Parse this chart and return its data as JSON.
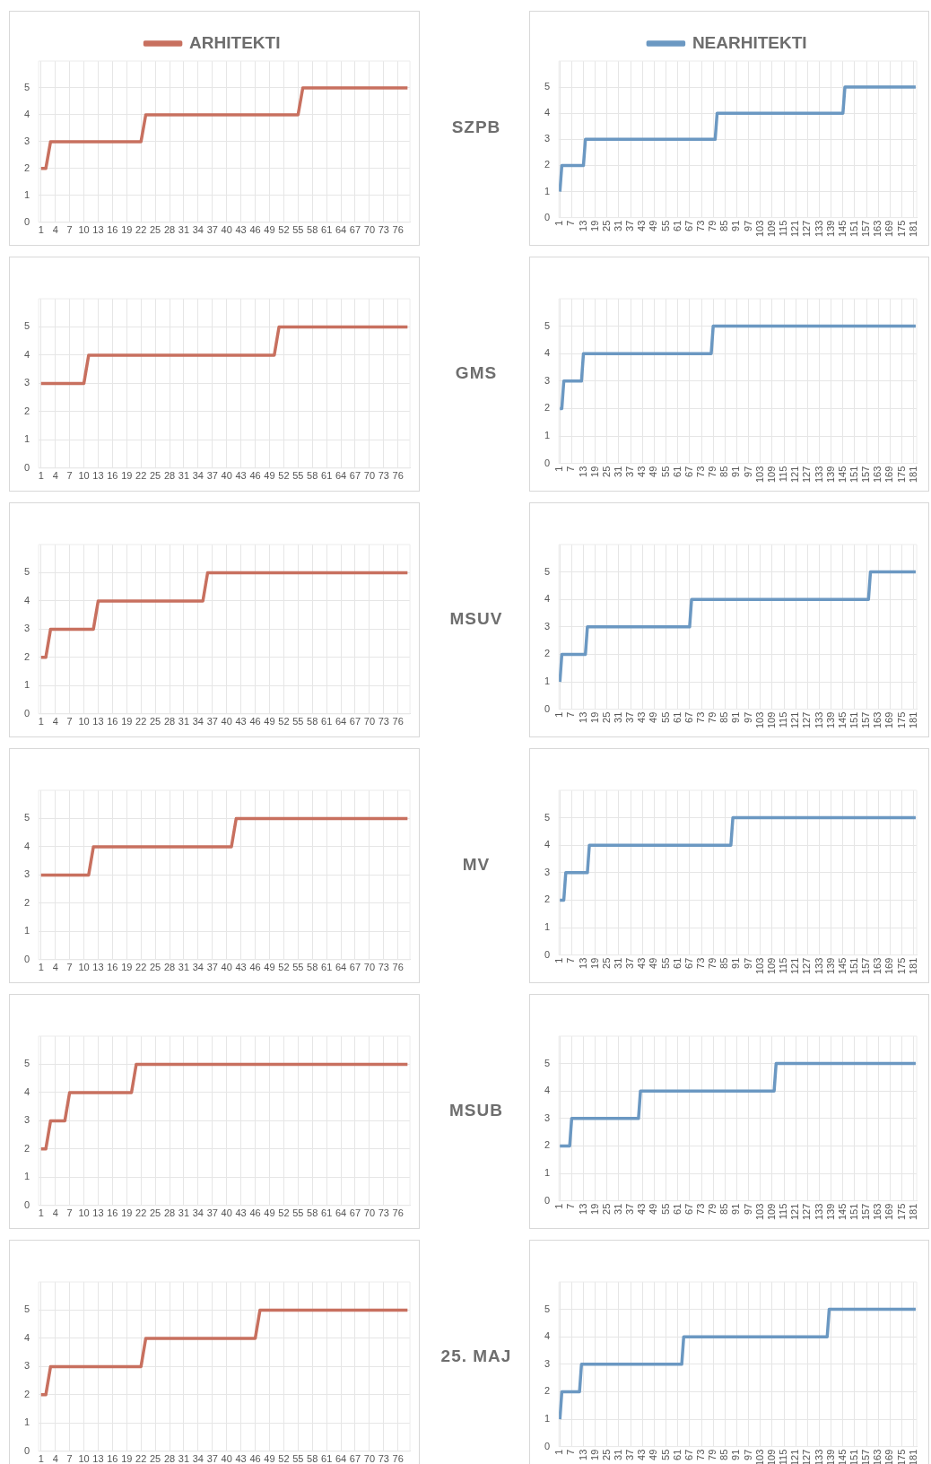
{
  "chart_data": [
    {
      "type": "line",
      "annotations": [
        "SZPB"
      ],
      "legend": "top",
      "grid": true,
      "xlim": [
        0.5,
        78.5
      ],
      "xticks": [
        1,
        4,
        7,
        10,
        13,
        16,
        19,
        22,
        25,
        28,
        31,
        34,
        37,
        40,
        43,
        46,
        49,
        52,
        55,
        58,
        61,
        64,
        67,
        70,
        73,
        76
      ],
      "ylim": [
        0,
        6
      ],
      "yticks": [
        0,
        1,
        2,
        3,
        4,
        5
      ],
      "series": [
        {
          "name": "ARHITEKTI",
          "color": "#c8705f",
          "x": [
            1,
            2,
            3,
            22,
            23,
            55,
            56,
            78
          ],
          "values": [
            2,
            2,
            3,
            3,
            4,
            4,
            5,
            5
          ]
        }
      ]
    },
    {
      "type": "line",
      "legend": "top",
      "grid": true,
      "xlim": [
        0.5,
        182.5
      ],
      "xticks": [
        1,
        7,
        13,
        19,
        25,
        31,
        37,
        43,
        49,
        55,
        61,
        67,
        73,
        79,
        85,
        91,
        97,
        103,
        109,
        115,
        121,
        127,
        133,
        139,
        145,
        151,
        157,
        163,
        169,
        175,
        181
      ],
      "ylim": [
        0,
        6
      ],
      "yticks": [
        0,
        1,
        2,
        3,
        4,
        5
      ],
      "series": [
        {
          "name": "NEARHITEKTI",
          "color": "#6b98c2",
          "x": [
            1,
            2,
            13,
            14,
            80,
            81,
            145,
            146,
            182
          ],
          "values": [
            1,
            2,
            2,
            3,
            3,
            4,
            4,
            5,
            5
          ]
        }
      ]
    },
    {
      "type": "line",
      "annotations": [
        "GMS"
      ],
      "grid": true,
      "xlim": [
        0.5,
        78.5
      ],
      "xticks": [
        1,
        4,
        7,
        10,
        13,
        16,
        19,
        22,
        25,
        28,
        31,
        34,
        37,
        40,
        43,
        46,
        49,
        52,
        55,
        58,
        61,
        64,
        67,
        70,
        73,
        76
      ],
      "ylim": [
        0,
        6
      ],
      "yticks": [
        0,
        1,
        2,
        3,
        4,
        5
      ],
      "series": [
        {
          "color": "#c8705f",
          "x": [
            1,
            10,
            11,
            50,
            51,
            78
          ],
          "values": [
            3,
            3,
            4,
            4,
            5,
            5
          ]
        }
      ]
    },
    {
      "type": "line",
      "grid": true,
      "xlim": [
        0.5,
        182.5
      ],
      "xticks": [
        1,
        7,
        13,
        19,
        25,
        31,
        37,
        43,
        49,
        55,
        61,
        67,
        73,
        79,
        85,
        91,
        97,
        103,
        109,
        115,
        121,
        127,
        133,
        139,
        145,
        151,
        157,
        163,
        169,
        175,
        181
      ],
      "ylim": [
        0,
        6
      ],
      "yticks": [
        0,
        1,
        2,
        3,
        4,
        5
      ],
      "series": [
        {
          "color": "#6b98c2",
          "x": [
            1,
            2,
            3,
            12,
            13,
            78,
            79,
            182
          ],
          "values": [
            2,
            2,
            3,
            3,
            4,
            4,
            5,
            5
          ]
        }
      ]
    },
    {
      "type": "line",
      "annotations": [
        "MSUV"
      ],
      "grid": true,
      "xlim": [
        0.5,
        78.5
      ],
      "xticks": [
        1,
        4,
        7,
        10,
        13,
        16,
        19,
        22,
        25,
        28,
        31,
        34,
        37,
        40,
        43,
        46,
        49,
        52,
        55,
        58,
        61,
        64,
        67,
        70,
        73,
        76
      ],
      "ylim": [
        0,
        6
      ],
      "yticks": [
        0,
        1,
        2,
        3,
        4,
        5
      ],
      "series": [
        {
          "color": "#c8705f",
          "x": [
            1,
            2,
            3,
            12,
            13,
            35,
            36,
            78
          ],
          "values": [
            2,
            2,
            3,
            3,
            4,
            4,
            5,
            5
          ]
        }
      ]
    },
    {
      "type": "line",
      "grid": true,
      "xlim": [
        0.5,
        182.5
      ],
      "xticks": [
        1,
        7,
        13,
        19,
        25,
        31,
        37,
        43,
        49,
        55,
        61,
        67,
        73,
        79,
        85,
        91,
        97,
        103,
        109,
        115,
        121,
        127,
        133,
        139,
        145,
        151,
        157,
        163,
        169,
        175,
        181
      ],
      "ylim": [
        0,
        6
      ],
      "yticks": [
        0,
        1,
        2,
        3,
        4,
        5
      ],
      "series": [
        {
          "color": "#6b98c2",
          "x": [
            1,
            2,
            14,
            15,
            67,
            68,
            158,
            159,
            182
          ],
          "values": [
            1,
            2,
            2,
            3,
            3,
            4,
            4,
            5,
            5
          ]
        }
      ]
    },
    {
      "type": "line",
      "annotations": [
        "MV"
      ],
      "grid": true,
      "xlim": [
        0.5,
        78.5
      ],
      "xticks": [
        1,
        4,
        7,
        10,
        13,
        16,
        19,
        22,
        25,
        28,
        31,
        34,
        37,
        40,
        43,
        46,
        49,
        52,
        55,
        58,
        61,
        64,
        67,
        70,
        73,
        76
      ],
      "ylim": [
        0,
        6
      ],
      "yticks": [
        0,
        1,
        2,
        3,
        4,
        5
      ],
      "series": [
        {
          "color": "#c8705f",
          "x": [
            1,
            11,
            12,
            41,
            42,
            78
          ],
          "values": [
            3,
            3,
            4,
            4,
            5,
            5
          ]
        }
      ]
    },
    {
      "type": "line",
      "grid": true,
      "xlim": [
        0.5,
        182.5
      ],
      "xticks": [
        1,
        7,
        13,
        19,
        25,
        31,
        37,
        43,
        49,
        55,
        61,
        67,
        73,
        79,
        85,
        91,
        97,
        103,
        109,
        115,
        121,
        127,
        133,
        139,
        145,
        151,
        157,
        163,
        169,
        175,
        181
      ],
      "ylim": [
        0,
        6
      ],
      "yticks": [
        0,
        1,
        2,
        3,
        4,
        5
      ],
      "series": [
        {
          "color": "#6b98c2",
          "x": [
            1,
            3,
            4,
            15,
            16,
            88,
            89,
            182
          ],
          "values": [
            2,
            2,
            3,
            3,
            4,
            4,
            5,
            5
          ]
        }
      ]
    },
    {
      "type": "line",
      "annotations": [
        "MSUB"
      ],
      "grid": true,
      "xlim": [
        0.5,
        78.5
      ],
      "xticks": [
        1,
        4,
        7,
        10,
        13,
        16,
        19,
        22,
        25,
        28,
        31,
        34,
        37,
        40,
        43,
        46,
        49,
        52,
        55,
        58,
        61,
        64,
        67,
        70,
        73,
        76
      ],
      "ylim": [
        0,
        6
      ],
      "yticks": [
        0,
        1,
        2,
        3,
        4,
        5
      ],
      "series": [
        {
          "color": "#c8705f",
          "x": [
            1,
            2,
            3,
            6,
            7,
            20,
            21,
            78
          ],
          "values": [
            2,
            2,
            3,
            3,
            4,
            4,
            5,
            5
          ]
        }
      ]
    },
    {
      "type": "line",
      "grid": true,
      "xlim": [
        0.5,
        182.5
      ],
      "xticks": [
        1,
        7,
        13,
        19,
        25,
        31,
        37,
        43,
        49,
        55,
        61,
        67,
        73,
        79,
        85,
        91,
        97,
        103,
        109,
        115,
        121,
        127,
        133,
        139,
        145,
        151,
        157,
        163,
        169,
        175,
        181
      ],
      "ylim": [
        0,
        6
      ],
      "yticks": [
        0,
        1,
        2,
        3,
        4,
        5
      ],
      "series": [
        {
          "color": "#6b98c2",
          "x": [
            1,
            6,
            7,
            41,
            42,
            110,
            111,
            182
          ],
          "values": [
            2,
            2,
            3,
            3,
            4,
            4,
            5,
            5
          ]
        }
      ]
    },
    {
      "type": "line",
      "annotations": [
        "25. MAJ"
      ],
      "grid": true,
      "xlim": [
        0.5,
        78.5
      ],
      "xticks": [
        1,
        4,
        7,
        10,
        13,
        16,
        19,
        22,
        25,
        28,
        31,
        34,
        37,
        40,
        43,
        46,
        49,
        52,
        55,
        58,
        61,
        64,
        67,
        70,
        73,
        76
      ],
      "ylim": [
        0,
        6
      ],
      "yticks": [
        0,
        1,
        2,
        3,
        4,
        5
      ],
      "series": [
        {
          "color": "#c8705f",
          "x": [
            1,
            2,
            3,
            22,
            23,
            46,
            47,
            78
          ],
          "values": [
            2,
            2,
            3,
            3,
            4,
            4,
            5,
            5
          ]
        }
      ]
    },
    {
      "type": "line",
      "grid": true,
      "xlim": [
        0.5,
        182.5
      ],
      "xticks": [
        1,
        7,
        13,
        19,
        25,
        31,
        37,
        43,
        49,
        55,
        61,
        67,
        73,
        79,
        85,
        91,
        97,
        103,
        109,
        115,
        121,
        127,
        133,
        139,
        145,
        151,
        157,
        163,
        169,
        175,
        181
      ],
      "ylim": [
        0,
        6
      ],
      "yticks": [
        0,
        1,
        2,
        3,
        4,
        5
      ],
      "series": [
        {
          "color": "#6b98c2",
          "x": [
            1,
            2,
            11,
            12,
            63,
            64,
            137,
            138,
            182
          ],
          "values": [
            1,
            2,
            2,
            3,
            3,
            4,
            4,
            5,
            5
          ]
        }
      ]
    }
  ]
}
